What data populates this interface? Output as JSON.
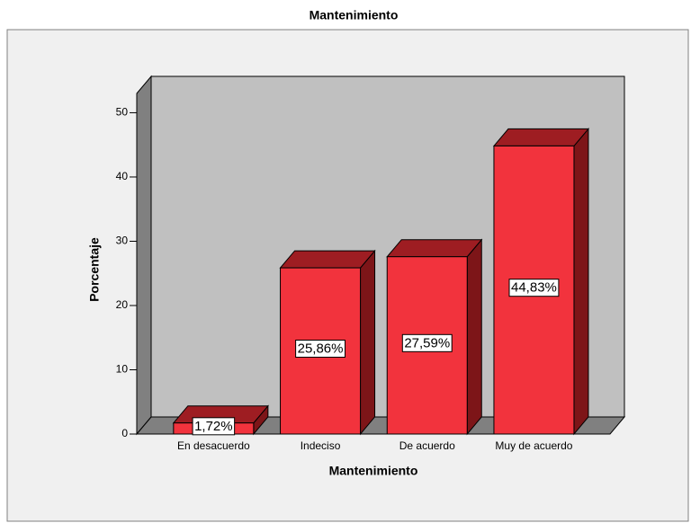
{
  "chart_data": {
    "type": "bar3d",
    "title": "Mantenimiento",
    "x_label": "Mantenimiento",
    "y_label": "Porcentaje",
    "categories": [
      "En desacuerdo",
      "Indeciso",
      "De acuerdo",
      "Muy de acuerdo"
    ],
    "values": [
      1.72,
      25.86,
      27.59,
      44.83
    ],
    "value_labels": [
      "1,72%",
      "25,86%",
      "27,59%",
      "44,83%"
    ],
    "color": "#f2333d",
    "ylim": [
      0,
      53
    ],
    "yticks": [
      0,
      10,
      20,
      30,
      40,
      50
    ],
    "grid": false
  }
}
